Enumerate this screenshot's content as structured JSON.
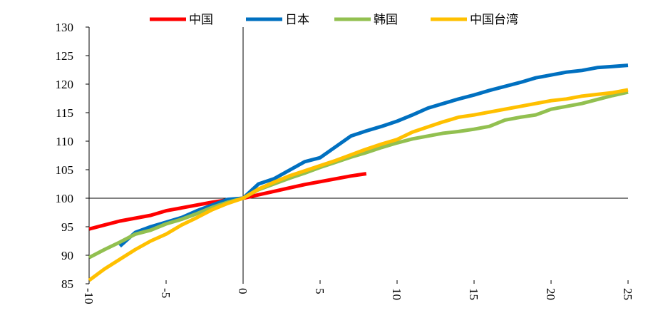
{
  "chart_data": {
    "type": "line",
    "title": "",
    "xlabel": "",
    "ylabel": "",
    "xlim": [
      -10,
      25
    ],
    "ylim": [
      85,
      130
    ],
    "x_ticks": [
      -10,
      -5,
      0,
      5,
      10,
      15,
      20,
      25
    ],
    "y_ticks": [
      85,
      90,
      95,
      100,
      105,
      110,
      115,
      120,
      125,
      130
    ],
    "grid": false,
    "legend_position": "top",
    "series": [
      {
        "name": "中国",
        "color": "#ff0000",
        "x": [
          -10,
          -9,
          -8,
          -7,
          -6,
          -5,
          -4,
          -3,
          -2,
          -1,
          0,
          1,
          2,
          3,
          4,
          5,
          6,
          7,
          8
        ],
        "y": [
          94.6,
          95.3,
          96.0,
          96.5,
          97.0,
          97.8,
          98.3,
          98.8,
          99.3,
          99.7,
          100.0,
          100.6,
          101.2,
          101.8,
          102.4,
          102.9,
          103.4,
          103.9,
          104.3
        ]
      },
      {
        "name": "日本",
        "color": "#0070c0",
        "x": [
          -8,
          -7,
          -6,
          -5,
          -4,
          -3,
          -2,
          -1,
          0,
          1,
          2,
          3,
          4,
          5,
          6,
          7,
          8,
          9,
          10,
          11,
          12,
          13,
          14,
          15,
          16,
          17,
          18,
          19,
          20,
          21,
          22,
          23,
          24,
          25
        ],
        "y": [
          91.6,
          94.0,
          95.0,
          95.8,
          96.6,
          97.8,
          98.8,
          99.8,
          100.0,
          102.5,
          103.4,
          104.9,
          106.4,
          107.1,
          109.0,
          110.9,
          111.8,
          112.6,
          113.5,
          114.6,
          115.8,
          116.6,
          117.4,
          118.1,
          118.9,
          119.6,
          120.3,
          121.1,
          121.6,
          122.1,
          122.4,
          122.9,
          123.1,
          123.3
        ]
      },
      {
        "name": "韩国",
        "color": "#92c050",
        "x": [
          -10,
          -9,
          -8,
          -7,
          -6,
          -5,
          -4,
          -3,
          -2,
          -1,
          0,
          1,
          2,
          3,
          4,
          5,
          6,
          7,
          8,
          9,
          10,
          11,
          12,
          13,
          14,
          15,
          16,
          17,
          18,
          19,
          20,
          21,
          22,
          23,
          24,
          25
        ],
        "y": [
          89.6,
          91.0,
          92.3,
          93.7,
          94.4,
          95.5,
          96.3,
          97.3,
          98.4,
          99.3,
          100.0,
          101.5,
          102.5,
          103.5,
          104.4,
          105.4,
          106.3,
          107.2,
          108.0,
          108.9,
          109.7,
          110.4,
          110.9,
          111.4,
          111.7,
          112.1,
          112.6,
          113.7,
          114.2,
          114.6,
          115.6,
          116.1,
          116.6,
          117.3,
          118.0,
          118.6
        ]
      },
      {
        "name": "中国台湾",
        "color": "#ffc000",
        "x": [
          -10,
          -9,
          -8,
          -7,
          -6,
          -5,
          -4,
          -3,
          -2,
          -1,
          0,
          1,
          2,
          3,
          4,
          5,
          6,
          7,
          8,
          9,
          10,
          11,
          12,
          13,
          14,
          15,
          16,
          17,
          18,
          19,
          20,
          21,
          22,
          23,
          24,
          25
        ],
        "y": [
          85.6,
          87.6,
          89.3,
          91.0,
          92.5,
          93.7,
          95.3,
          96.6,
          98.0,
          99.1,
          100.0,
          101.6,
          102.8,
          103.9,
          104.8,
          105.7,
          106.6,
          107.6,
          108.6,
          109.5,
          110.3,
          111.6,
          112.5,
          113.4,
          114.2,
          114.6,
          115.1,
          115.6,
          116.1,
          116.6,
          117.1,
          117.4,
          117.9,
          118.2,
          118.5,
          119.0
        ]
      }
    ]
  }
}
